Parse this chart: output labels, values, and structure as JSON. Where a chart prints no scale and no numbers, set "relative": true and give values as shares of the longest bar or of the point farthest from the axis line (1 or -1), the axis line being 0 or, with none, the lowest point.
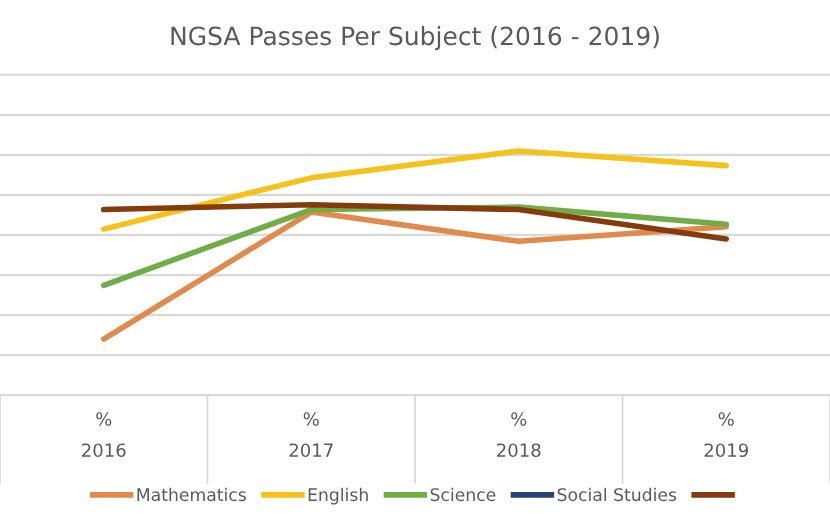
{
  "chart_data": {
    "type": "line",
    "title": "NGSA Passes Per Subject (2016 - 2019)",
    "relative": true,
    "categories": [
      "%\n2016",
      "%\n2017",
      "%\n2018",
      "%\n2019"
    ],
    "series": [
      {
        "name": "Mathematics",
        "color": "#e08a4c",
        "values": [
          0.23,
          0.75,
          0.63,
          0.69
        ]
      },
      {
        "name": "English",
        "color": "#f5c21b",
        "values": [
          0.68,
          0.89,
          1,
          0.94
        ]
      },
      {
        "name": "Science",
        "color": "#70ad47",
        "values": [
          0.45,
          0.76,
          0.77,
          0.7
        ]
      },
      {
        "name": "Social Studies",
        "color": "#264478",
        "values": [
          null,
          null,
          null,
          null
        ]
      },
      {
        "color": "#843c0c",
        "values": [
          0.76,
          0.78,
          0.76,
          0.64
        ]
      }
    ],
    "grid": "y",
    "legend": "bottom",
    "marker": "none",
    "line_style": "solid"
  }
}
